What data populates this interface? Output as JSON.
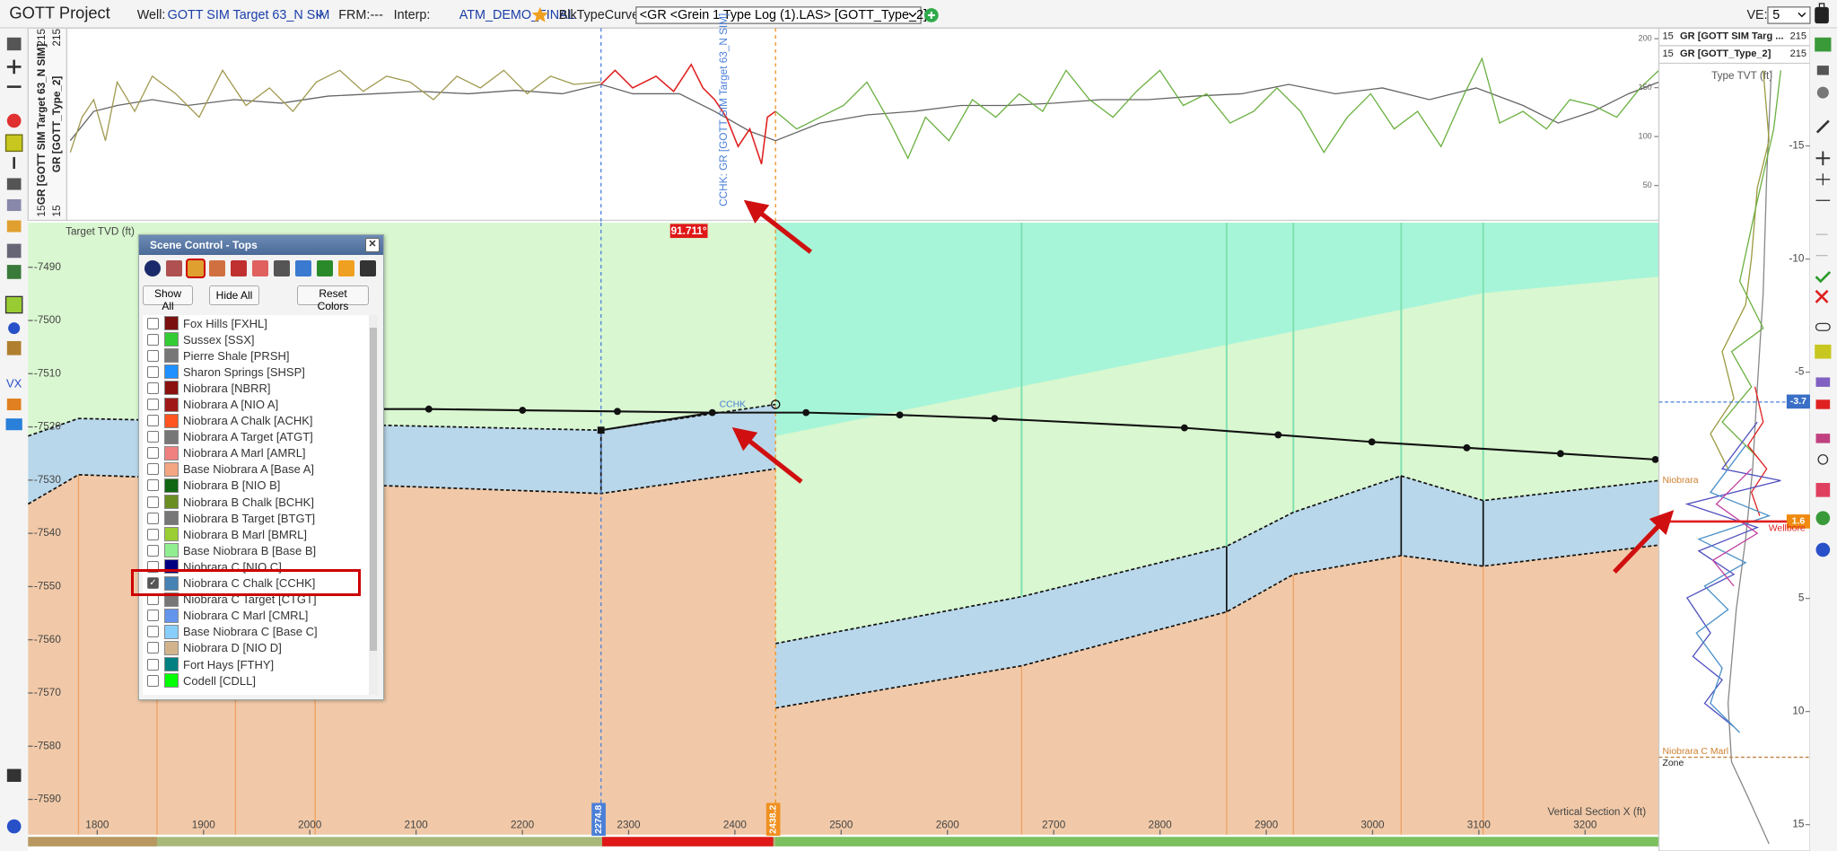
{
  "header": {
    "title": "GOTT Project",
    "well_label": "Well:",
    "well": "GOTT SIM Target 63_N SIM",
    "frm_label": "FRM:",
    "frm": "---",
    "interp_label": "Interp:",
    "interp": "ATM_DEMO_FINAL",
    "blk_label": "BlkTypeCurve:",
    "blk": "<GR <Grein 1 Type Log (1).LAS> [GOTT_Type_2]>",
    "ve_label": "VE:",
    "ve": "5"
  },
  "log_track": {
    "min": "15",
    "max": "215",
    "curve1": "GR [GOTT SIM Target 63_N SIM]",
    "curve2": "GR [GOTT_Type_2]",
    "ticks": [
      200,
      150,
      100,
      50
    ],
    "marker": "CCHK: GR [GOTT SIM Target 63_N SIM]"
  },
  "section": {
    "y_label": "Target TVD (ft)",
    "x_label": "Vertical Section X (ft)",
    "yticks": [
      -7490,
      -7500,
      -7510,
      -7520,
      -7530,
      -7540,
      -7550,
      -7560,
      -7570,
      -7580,
      -7590
    ],
    "xticks": [
      1800,
      1900,
      2000,
      2100,
      2200,
      2300,
      2400,
      2500,
      2600,
      2700,
      2800,
      2900,
      3000,
      3100,
      3200
    ],
    "dip": "91.711°",
    "top_label": "CCHK",
    "marker1": "2274.8",
    "marker2": "2438.2"
  },
  "scene_control": {
    "title": "Scene Control - Tops",
    "buttons": [
      "Show All",
      "Hide All",
      "Reset Colors"
    ],
    "tops": [
      {
        "name": "Fox Hills [FXHL]",
        "color": "#7a1010",
        "checked": false
      },
      {
        "name": "Sussex [SSX]",
        "color": "#33cc33",
        "checked": false
      },
      {
        "name": "Pierre Shale [PRSH]",
        "color": "#777777",
        "checked": false
      },
      {
        "name": "Sharon Springs [SHSP]",
        "color": "#1e90ff",
        "checked": false
      },
      {
        "name": "Niobrara [NBRR]",
        "color": "#8b1010",
        "checked": false
      },
      {
        "name": "Niobrara A [NIO A]",
        "color": "#a01818",
        "checked": false
      },
      {
        "name": "Niobrara A Chalk [ACHK]",
        "color": "#ff5522",
        "checked": false
      },
      {
        "name": "Niobrara A Target [ATGT]",
        "color": "#777777",
        "checked": false
      },
      {
        "name": "Niobrara A Marl [AMRL]",
        "color": "#f08080",
        "checked": false
      },
      {
        "name": "Base Niobrara A [Base A]",
        "color": "#f4a582",
        "checked": false
      },
      {
        "name": "Niobrara B [NIO B]",
        "color": "#116611",
        "checked": false
      },
      {
        "name": "Niobrara B Chalk [BCHK]",
        "color": "#6b8e23",
        "checked": false
      },
      {
        "name": "Niobrara B Target [BTGT]",
        "color": "#777777",
        "checked": false
      },
      {
        "name": "Niobrara B Marl [BMRL]",
        "color": "#9acd32",
        "checked": false
      },
      {
        "name": "Base Niobrara B [Base B]",
        "color": "#90ee90",
        "checked": false
      },
      {
        "name": "Niobrara C [NIO C]",
        "color": "#000080",
        "checked": false
      },
      {
        "name": "Niobrara C Chalk [CCHK]",
        "color": "#4682b4",
        "checked": true
      },
      {
        "name": "Niobrara C Target [CTGT]",
        "color": "#777777",
        "checked": false
      },
      {
        "name": "Niobrara C Marl [CMRL]",
        "color": "#6495ed",
        "checked": false
      },
      {
        "name": "Base Niobrara C [Base C]",
        "color": "#87cefa",
        "checked": false
      },
      {
        "name": "Niobrara D [NIO D]",
        "color": "#d2b48c",
        "checked": false
      },
      {
        "name": "Fort Hays [FTHY]",
        "color": "#008080",
        "checked": false
      },
      {
        "name": "Codell [CDLL]",
        "color": "#00ff00",
        "checked": false
      }
    ]
  },
  "type_log": {
    "header": [
      {
        "min": "15",
        "name": "GR [GOTT SIM Targ ...",
        "max": "215"
      },
      {
        "min": "15",
        "name": "GR [GOTT_Type_2]",
        "max": "215"
      }
    ],
    "axis_label": "Type TVT (ft)",
    "ticks": [
      -15,
      -10,
      -5,
      5,
      10,
      15
    ],
    "badge_top": -3.7,
    "badge_bottom": 1.6,
    "top_label": "Niobrara",
    "wellbore_label": "Wellbore",
    "marl_label": "Niobrara C Marl",
    "zone_label": "Zone"
  }
}
